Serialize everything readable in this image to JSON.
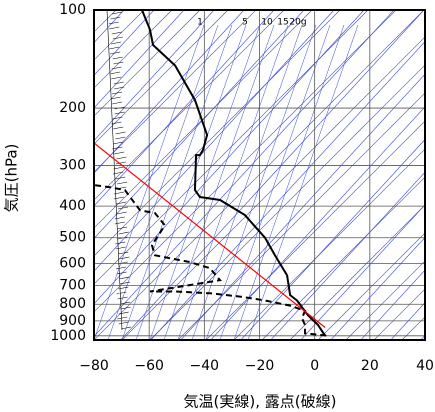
{
  "chart_data": {
    "type": "skewt",
    "xlabel": "気温(実線), 露点(破線)",
    "ylabel": "気圧(hPa)",
    "annotations": [
      "1",
      "5",
      "10",
      "15",
      "20g"
    ],
    "xlim": [
      -80,
      40
    ],
    "xticks": [
      {
        "value": -80,
        "label": "−80"
      },
      {
        "value": -60,
        "label": "−60"
      },
      {
        "value": -40,
        "label": "−40"
      },
      {
        "value": -20,
        "label": "−20"
      },
      0,
      20,
      40
    ],
    "ylim": [
      100,
      1030
    ],
    "yticks": [
      100,
      200,
      300,
      400,
      500,
      600,
      700,
      800,
      900,
      1000
    ],
    "log_y": true,
    "grid": true,
    "series": [
      {
        "color": "#000000",
        "style": "solid",
        "x": [
          -62.6,
          -59.7,
          -58.6,
          -50.6,
          -43.4,
          -39.0,
          -40.5,
          -41.6,
          -43.0,
          -43.4,
          -41.6,
          -34.3,
          -25.3,
          -18.0,
          -14.4,
          -10.0,
          -8.9,
          -6.4,
          -2.4,
          1.2,
          3.8
        ],
        "y": [
          100,
          115,
          128,
          148,
          189,
          242,
          269,
          279,
          279,
          357,
          375,
          383,
          426,
          500,
          566,
          652,
          750,
          779,
          865,
          926,
          1000
        ]
      },
      {
        "color": "#000000",
        "style": "dashed",
        "x": [
          -79.6,
          -74.2,
          -68.8,
          -63.3,
          -57.9,
          -54.3,
          -59.0,
          -57.9,
          -45.2,
          -38.0,
          -34.3,
          -49.5,
          -59.7,
          -50.6,
          -37.3,
          -26.0,
          -18.0,
          -8.9,
          -3.5,
          -4.6,
          -3.5,
          -3.5,
          5.6
        ],
        "y": [
          345,
          350,
          357,
          412,
          420,
          458,
          527,
          566,
          594,
          620,
          675,
          708,
          731,
          731,
          741,
          760,
          779,
          808,
          838,
          883,
          926,
          983,
          1000
        ]
      },
      {
        "color": "#ff0000",
        "style": "solid",
        "x": [
          -80,
          3.8
        ],
        "y": [
          256,
          943
        ]
      }
    ]
  }
}
